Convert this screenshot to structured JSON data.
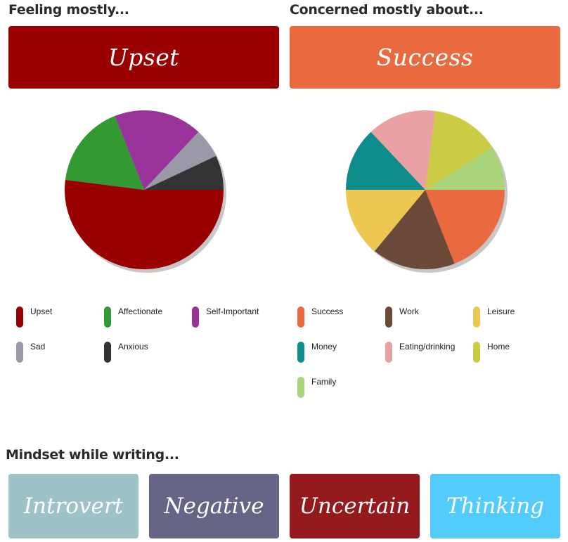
{
  "feeling": {
    "heading": "Feeling mostly...",
    "label": "Upset",
    "color": "#9b0000"
  },
  "concern": {
    "heading": "Concerned mostly about...",
    "label": "Success",
    "color": "#ea6a40"
  },
  "mindset": {
    "heading": "Mindset while writing...",
    "tiles": [
      {
        "label": "Introvert",
        "color": "#9dc3c6"
      },
      {
        "label": "Negative",
        "color": "#656585"
      },
      {
        "label": "Uncertain",
        "color": "#951a1e"
      },
      {
        "label": "Thinking",
        "color": "#53ccfb"
      }
    ]
  },
  "chart_data": [
    {
      "type": "pie",
      "series": [
        {
          "label": "Upset",
          "value": 52,
          "color": "#9b0000"
        },
        {
          "label": "Affectionate",
          "value": 17,
          "color": "#339933"
        },
        {
          "label": "Self-Important",
          "value": 18,
          "color": "#993399"
        },
        {
          "label": "Sad",
          "value": 6,
          "color": "#9999aa"
        },
        {
          "label": "Anxious",
          "value": 7,
          "color": "#333333"
        }
      ]
    },
    {
      "type": "pie",
      "series": [
        {
          "label": "Success",
          "value": 19,
          "color": "#ea6a40"
        },
        {
          "label": "Work",
          "value": 17,
          "color": "#6b4a3a"
        },
        {
          "label": "Leisure",
          "value": 14,
          "color": "#edc74f"
        },
        {
          "label": "Money",
          "value": 13,
          "color": "#108b8b"
        },
        {
          "label": "Eating/drinking",
          "value": 14,
          "color": "#e9a1a1"
        },
        {
          "label": "Home",
          "value": 14,
          "color": "#cccc44"
        },
        {
          "label": "Family",
          "value": 9,
          "color": "#aad47a"
        }
      ]
    }
  ]
}
